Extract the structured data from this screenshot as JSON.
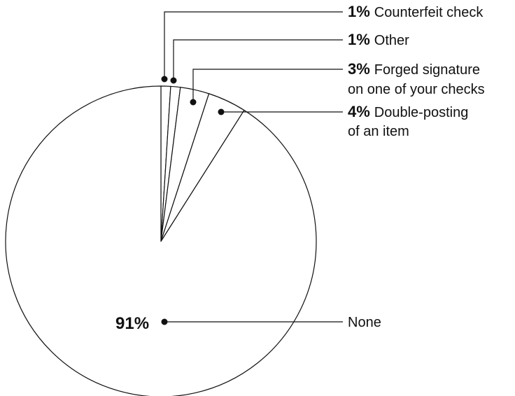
{
  "chart_data": {
    "type": "pie",
    "start_angle_deg": 0,
    "direction": "clockwise",
    "slices": [
      {
        "label": "Counterfeit check",
        "value": 1,
        "pct_text": "1%"
      },
      {
        "label": "Other",
        "value": 1,
        "pct_text": "1%"
      },
      {
        "label": "Forged signature on one of your checks",
        "label_lines": [
          "Forged signature",
          "on one of your checks"
        ],
        "value": 3,
        "pct_text": "3%"
      },
      {
        "label": "Double-posting of an item",
        "label_lines": [
          "Double-posting",
          "of an item"
        ],
        "value": 4,
        "pct_text": "4%"
      },
      {
        "label": "None",
        "value": 91,
        "pct_text": "91%"
      }
    ],
    "colors": {
      "fill": "#ffffff",
      "stroke": "#111111"
    },
    "legend": "callouts-right"
  }
}
